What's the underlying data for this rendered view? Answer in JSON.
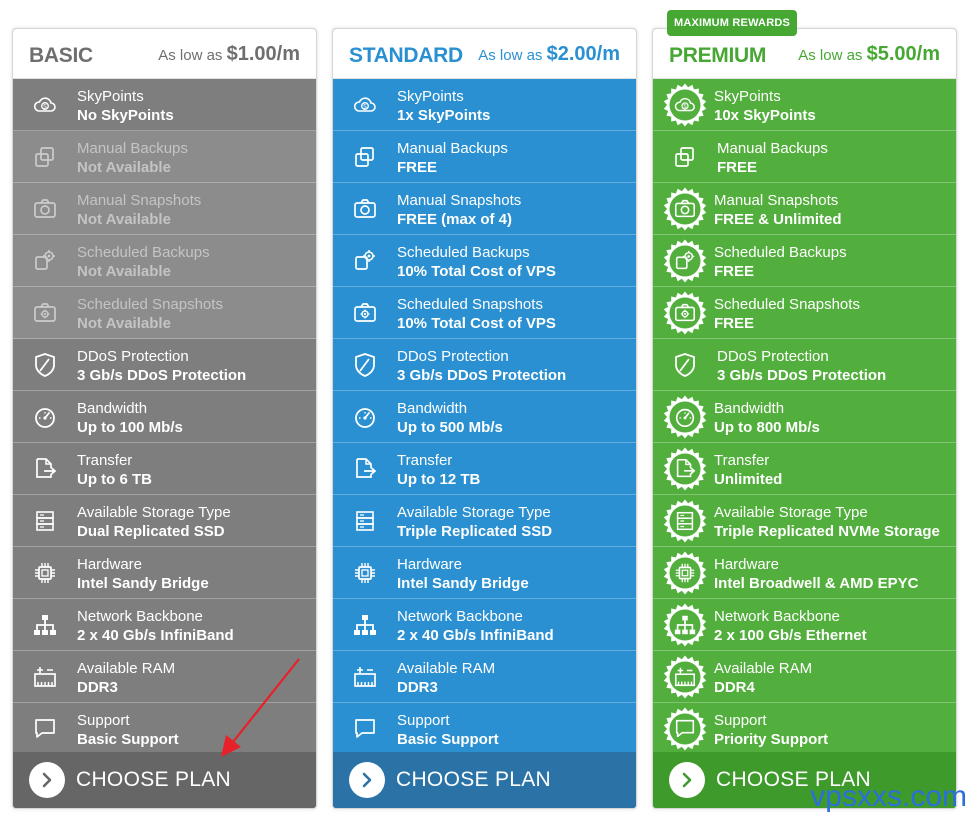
{
  "badge": "MAXIMUM REWARDS",
  "watermark": "vpsxxs.com",
  "colors": {
    "basic": "#838383",
    "standard": "#2a90d2",
    "premium": "#53af3d"
  },
  "plans": [
    {
      "name": "BASIC",
      "price_prefix": "As low as",
      "price": "$1.00/m",
      "cta": "CHOOSE PLAN",
      "features": [
        {
          "icon": "cloud-coin-icon",
          "title": "SkyPoints",
          "value": "No SkyPoints"
        },
        {
          "icon": "copy-icon",
          "title": "Manual Backups",
          "value": "Not Available"
        },
        {
          "icon": "camera-icon",
          "title": "Manual Snapshots",
          "value": "Not Available"
        },
        {
          "icon": "scheduled-backup-icon",
          "title": "Scheduled Backups",
          "value": "Not Available"
        },
        {
          "icon": "scheduled-camera-icon",
          "title": "Scheduled Snapshots",
          "value": "Not Available"
        },
        {
          "icon": "shield-icon",
          "title": "DDoS Protection",
          "value": "3 Gb/s DDoS Protection"
        },
        {
          "icon": "speedometer-icon",
          "title": "Bandwidth",
          "value": "Up to 100 Mb/s"
        },
        {
          "icon": "file-transfer-icon",
          "title": "Transfer",
          "value": "Up to 6 TB"
        },
        {
          "icon": "storage-icon",
          "title": "Available Storage Type",
          "value": "Dual Replicated SSD"
        },
        {
          "icon": "chip-icon",
          "title": "Hardware",
          "value": "Intel Sandy Bridge"
        },
        {
          "icon": "network-icon",
          "title": "Network Backbone",
          "value": "2 x 40 Gb/s InfiniBand"
        },
        {
          "icon": "ram-icon",
          "title": "Available RAM",
          "value": "DDR3"
        },
        {
          "icon": "chat-icon",
          "title": "Support",
          "value": "Basic Support"
        }
      ]
    },
    {
      "name": "STANDARD",
      "price_prefix": "As low as",
      "price": "$2.00/m",
      "cta": "CHOOSE PLAN",
      "features": [
        {
          "icon": "cloud-coin-icon",
          "title": "SkyPoints",
          "value": "1x SkyPoints"
        },
        {
          "icon": "copy-icon",
          "title": "Manual Backups",
          "value": "FREE"
        },
        {
          "icon": "camera-icon",
          "title": "Manual Snapshots",
          "value": "FREE (max of 4)"
        },
        {
          "icon": "scheduled-backup-icon",
          "title": "Scheduled Backups",
          "value": "10% Total Cost of VPS"
        },
        {
          "icon": "scheduled-camera-icon",
          "title": "Scheduled Snapshots",
          "value": "10% Total Cost of VPS"
        },
        {
          "icon": "shield-icon",
          "title": "DDoS Protection",
          "value": "3 Gb/s DDoS Protection"
        },
        {
          "icon": "speedometer-icon",
          "title": "Bandwidth",
          "value": "Up to 500 Mb/s"
        },
        {
          "icon": "file-transfer-icon",
          "title": "Transfer",
          "value": "Up to 12 TB"
        },
        {
          "icon": "storage-icon",
          "title": "Available Storage Type",
          "value": "Triple Replicated SSD"
        },
        {
          "icon": "chip-icon",
          "title": "Hardware",
          "value": "Intel Sandy Bridge"
        },
        {
          "icon": "network-icon",
          "title": "Network Backbone",
          "value": "2 x 40 Gb/s InfiniBand"
        },
        {
          "icon": "ram-icon",
          "title": "Available RAM",
          "value": "DDR3"
        },
        {
          "icon": "chat-icon",
          "title": "Support",
          "value": "Basic Support"
        }
      ]
    },
    {
      "name": "PREMIUM",
      "price_prefix": "As low as",
      "price": "$5.00/m",
      "cta": "CHOOSE PLAN",
      "features": [
        {
          "icon": "cloud-coin-icon",
          "title": "SkyPoints",
          "value": "10x SkyPoints"
        },
        {
          "icon": "copy-icon",
          "title": "Manual Backups",
          "value": "FREE"
        },
        {
          "icon": "camera-icon",
          "title": "Manual Snapshots",
          "value": "FREE & Unlimited"
        },
        {
          "icon": "scheduled-backup-icon",
          "title": "Scheduled Backups",
          "value": "FREE"
        },
        {
          "icon": "scheduled-camera-icon",
          "title": "Scheduled Snapshots",
          "value": "FREE"
        },
        {
          "icon": "shield-icon",
          "title": "DDoS Protection",
          "value": "3 Gb/s DDoS Protection"
        },
        {
          "icon": "speedometer-icon",
          "title": "Bandwidth",
          "value": "Up to 800 Mb/s"
        },
        {
          "icon": "file-transfer-icon",
          "title": "Transfer",
          "value": "Unlimited"
        },
        {
          "icon": "storage-icon",
          "title": "Available Storage Type",
          "value": "Triple Replicated NVMe Storage"
        },
        {
          "icon": "chip-icon",
          "title": "Hardware",
          "value": "Intel Broadwell & AMD EPYC"
        },
        {
          "icon": "network-icon",
          "title": "Network Backbone",
          "value": "2 x 100 Gb/s Ethernet"
        },
        {
          "icon": "ram-icon",
          "title": "Available RAM",
          "value": "DDR4"
        },
        {
          "icon": "chat-icon",
          "title": "Support",
          "value": "Priority Support"
        }
      ]
    }
  ]
}
